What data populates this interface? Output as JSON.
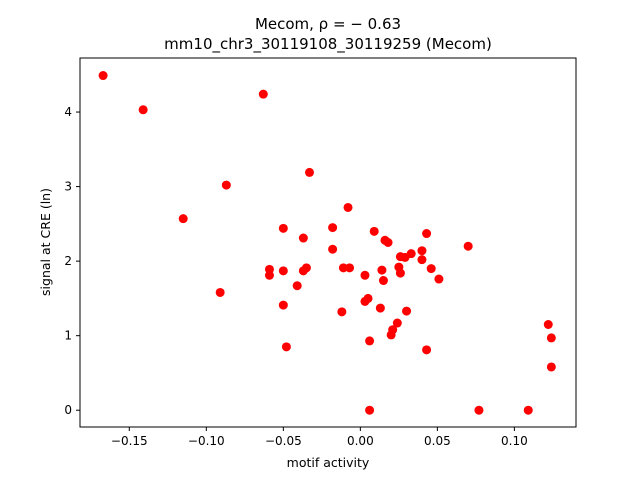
{
  "chart_data": {
    "type": "scatter",
    "title_line1": "Mecom, ρ = − 0.63",
    "title_line2": "mm10_chr3_30119108_30119259 (Mecom)",
    "xlabel": "motif activity",
    "ylabel": "signal at CRE (ln)",
    "xlim": [
      -0.182,
      0.14
    ],
    "ylim": [
      -0.225,
      4.725
    ],
    "xticks": [
      -0.15,
      -0.1,
      -0.05,
      0.0,
      0.05,
      0.1
    ],
    "xtick_labels": [
      "−0.15",
      "−0.10",
      "−0.05",
      "0.00",
      "0.05",
      "0.10"
    ],
    "yticks": [
      0,
      1,
      2,
      3,
      4
    ],
    "ytick_labels": [
      "0",
      "1",
      "2",
      "3",
      "4"
    ],
    "grid": false,
    "marker_color": "#ff0000",
    "points": [
      [
        -0.167,
        4.49
      ],
      [
        -0.141,
        4.03
      ],
      [
        -0.063,
        4.24
      ],
      [
        -0.087,
        3.02
      ],
      [
        -0.033,
        3.19
      ],
      [
        -0.115,
        2.57
      ],
      [
        -0.091,
        1.58
      ],
      [
        -0.05,
        2.44
      ],
      [
        -0.037,
        2.31
      ],
      [
        -0.018,
        2.45
      ],
      [
        -0.018,
        2.16
      ],
      [
        -0.008,
        2.72
      ],
      [
        -0.059,
        1.89
      ],
      [
        -0.059,
        1.81
      ],
      [
        -0.05,
        1.87
      ],
      [
        -0.037,
        1.87
      ],
      [
        -0.035,
        1.91
      ],
      [
        -0.041,
        1.67
      ],
      [
        -0.05,
        1.41
      ],
      [
        -0.048,
        0.85
      ],
      [
        -0.011,
        1.91
      ],
      [
        -0.007,
        1.91
      ],
      [
        -0.012,
        1.32
      ],
      [
        0.003,
        1.81
      ],
      [
        0.003,
        1.46
      ],
      [
        0.005,
        1.5
      ],
      [
        0.009,
        2.4
      ],
      [
        0.016,
        2.28
      ],
      [
        0.018,
        2.25
      ],
      [
        0.014,
        1.88
      ],
      [
        0.015,
        1.74
      ],
      [
        0.013,
        1.37
      ],
      [
        0.006,
        0.93
      ],
      [
        0.006,
        0.0
      ],
      [
        0.025,
        1.92
      ],
      [
        0.026,
        2.06
      ],
      [
        0.026,
        1.84
      ],
      [
        0.029,
        2.05
      ],
      [
        0.033,
        2.1
      ],
      [
        0.04,
        2.14
      ],
      [
        0.04,
        2.02
      ],
      [
        0.043,
        2.37
      ],
      [
        0.046,
        1.9
      ],
      [
        0.051,
        1.76
      ],
      [
        0.03,
        1.33
      ],
      [
        0.024,
        1.17
      ],
      [
        0.021,
        1.08
      ],
      [
        0.02,
        1.01
      ],
      [
        0.043,
        0.81
      ],
      [
        0.07,
        2.2
      ],
      [
        0.077,
        0.0
      ],
      [
        0.109,
        0.0
      ],
      [
        0.122,
        1.15
      ],
      [
        0.124,
        0.97
      ],
      [
        0.124,
        0.58
      ]
    ]
  }
}
